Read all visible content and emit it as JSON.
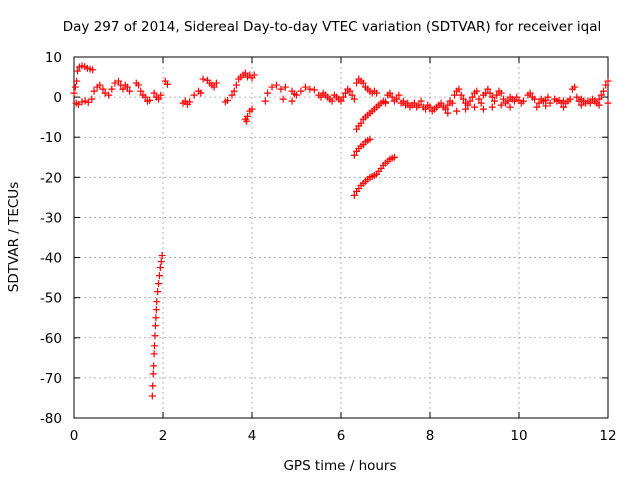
{
  "chart_data": {
    "type": "scatter",
    "title": "Day 297 of 2014, Sidereal Day-to-day VTEC variation (SDTVAR) for receiver iqal",
    "xlabel": "GPS time / hours",
    "ylabel": "SDTVAR / TECUs",
    "xlim": [
      0,
      12
    ],
    "ylim": [
      -80,
      10
    ],
    "xticks": [
      0,
      2,
      4,
      6,
      8,
      10,
      12
    ],
    "yticks": [
      -80,
      -70,
      -60,
      -50,
      -40,
      -30,
      -20,
      -10,
      0,
      10
    ],
    "grid": true,
    "marker": "+",
    "colors": {
      "series": "#ff0000",
      "grid": "#a0a0a0",
      "frame": "#000000"
    },
    "series": [
      {
        "name": "SDTVAR",
        "points": [
          [
            0.0,
            1.0
          ],
          [
            0.03,
            2.5
          ],
          [
            0.06,
            4.0
          ],
          [
            0.08,
            6.5
          ],
          [
            0.12,
            7.5
          ],
          [
            0.18,
            7.8
          ],
          [
            0.24,
            7.6
          ],
          [
            0.3,
            7.2
          ],
          [
            0.36,
            7.0
          ],
          [
            0.42,
            6.8
          ],
          [
            0.05,
            -1.5
          ],
          [
            0.1,
            -1.8
          ],
          [
            0.18,
            -1.2
          ],
          [
            0.25,
            -1.0
          ],
          [
            0.32,
            -1.3
          ],
          [
            0.4,
            -0.5
          ],
          [
            0.45,
            1.5
          ],
          [
            0.52,
            2.5
          ],
          [
            0.58,
            3.0
          ],
          [
            0.65,
            2.0
          ],
          [
            0.7,
            1.0
          ],
          [
            0.78,
            0.5
          ],
          [
            0.85,
            2.0
          ],
          [
            0.92,
            3.5
          ],
          [
            1.0,
            4.0
          ],
          [
            1.05,
            3.0
          ],
          [
            1.1,
            2.0
          ],
          [
            1.15,
            3.0
          ],
          [
            1.2,
            2.5
          ],
          [
            1.25,
            1.5
          ],
          [
            1.4,
            3.5
          ],
          [
            1.45,
            3.0
          ],
          [
            1.5,
            1.5
          ],
          [
            1.55,
            0.5
          ],
          [
            1.6,
            0.0
          ],
          [
            1.65,
            -1.0
          ],
          [
            1.7,
            -0.8
          ],
          [
            1.8,
            1.0
          ],
          [
            1.85,
            0.0
          ],
          [
            1.9,
            -0.5
          ],
          [
            1.95,
            0.5
          ],
          [
            2.05,
            4.0
          ],
          [
            2.1,
            3.2
          ],
          [
            1.76,
            -74.5
          ],
          [
            1.77,
            -72.0
          ],
          [
            1.78,
            -69.0
          ],
          [
            1.79,
            -67.0
          ],
          [
            1.8,
            -64.0
          ],
          [
            1.81,
            -62.0
          ],
          [
            1.82,
            -59.5
          ],
          [
            1.83,
            -57.0
          ],
          [
            1.84,
            -55.0
          ],
          [
            1.85,
            -53.0
          ],
          [
            1.86,
            -51.0
          ],
          [
            1.88,
            -48.5
          ],
          [
            1.9,
            -46.5
          ],
          [
            1.92,
            -44.5
          ],
          [
            1.94,
            -42.5
          ],
          [
            1.96,
            -41.0
          ],
          [
            1.98,
            -39.5
          ],
          [
            2.45,
            -1.5
          ],
          [
            2.5,
            -1.0
          ],
          [
            2.55,
            -1.8
          ],
          [
            2.6,
            -1.2
          ],
          [
            2.7,
            0.5
          ],
          [
            2.8,
            1.5
          ],
          [
            2.85,
            1.0
          ],
          [
            2.9,
            4.5
          ],
          [
            3.0,
            4.2
          ],
          [
            3.05,
            3.5
          ],
          [
            3.1,
            3.0
          ],
          [
            3.15,
            2.5
          ],
          [
            3.2,
            3.5
          ],
          [
            3.4,
            -1.2
          ],
          [
            3.45,
            -0.8
          ],
          [
            3.55,
            0.5
          ],
          [
            3.6,
            1.5
          ],
          [
            3.65,
            3.0
          ],
          [
            3.7,
            4.5
          ],
          [
            3.75,
            5.0
          ],
          [
            3.8,
            5.5
          ],
          [
            3.85,
            6.0
          ],
          [
            3.9,
            5.0
          ],
          [
            3.95,
            5.5
          ],
          [
            4.0,
            4.8
          ],
          [
            4.05,
            5.5
          ],
          [
            3.85,
            -5.5
          ],
          [
            3.88,
            -6.0
          ],
          [
            3.9,
            -4.8
          ],
          [
            3.95,
            -3.5
          ],
          [
            4.0,
            -3.0
          ],
          [
            4.3,
            -1.0
          ],
          [
            4.35,
            1.0
          ],
          [
            4.45,
            2.5
          ],
          [
            4.55,
            3.0
          ],
          [
            4.65,
            2.0
          ],
          [
            4.75,
            2.5
          ],
          [
            4.9,
            1.5
          ],
          [
            4.95,
            0.8
          ],
          [
            4.7,
            -0.5
          ],
          [
            4.9,
            -1.0
          ],
          [
            5.0,
            0.5
          ],
          [
            5.1,
            1.5
          ],
          [
            5.2,
            2.5
          ],
          [
            5.3,
            2.0
          ],
          [
            5.4,
            1.8
          ],
          [
            5.5,
            0.5
          ],
          [
            5.55,
            0.0
          ],
          [
            5.6,
            1.0
          ],
          [
            5.65,
            0.5
          ],
          [
            5.7,
            0.0
          ],
          [
            5.75,
            -0.5
          ],
          [
            5.8,
            -1.0
          ],
          [
            5.85,
            0.5
          ],
          [
            5.9,
            0.0
          ],
          [
            5.95,
            -0.5
          ],
          [
            6.0,
            -1.0
          ],
          [
            6.05,
            0.0
          ],
          [
            6.1,
            1.0
          ],
          [
            6.15,
            2.0
          ],
          [
            6.2,
            1.5
          ],
          [
            6.25,
            0.5
          ],
          [
            6.3,
            -0.5
          ],
          [
            6.35,
            3.5
          ],
          [
            6.4,
            4.5
          ],
          [
            6.45,
            4.0
          ],
          [
            6.5,
            3.5
          ],
          [
            6.55,
            2.5
          ],
          [
            6.6,
            2.0
          ],
          [
            6.65,
            1.5
          ],
          [
            6.7,
            1.0
          ],
          [
            6.75,
            1.5
          ],
          [
            6.8,
            1.0
          ],
          [
            6.35,
            -8.0
          ],
          [
            6.4,
            -7.2
          ],
          [
            6.45,
            -6.5
          ],
          [
            6.5,
            -5.5
          ],
          [
            6.55,
            -5.0
          ],
          [
            6.6,
            -4.5
          ],
          [
            6.65,
            -4.0
          ],
          [
            6.7,
            -3.5
          ],
          [
            6.75,
            -3.0
          ],
          [
            6.8,
            -2.5
          ],
          [
            6.85,
            -2.0
          ],
          [
            6.9,
            -1.5
          ],
          [
            6.95,
            -1.0
          ],
          [
            7.0,
            -1.2
          ],
          [
            6.3,
            -14.5
          ],
          [
            6.35,
            -13.5
          ],
          [
            6.4,
            -12.8
          ],
          [
            6.45,
            -12.2
          ],
          [
            6.5,
            -11.8
          ],
          [
            6.55,
            -11.2
          ],
          [
            6.6,
            -10.8
          ],
          [
            6.65,
            -10.5
          ],
          [
            6.3,
            -24.5
          ],
          [
            6.35,
            -23.5
          ],
          [
            6.4,
            -22.8
          ],
          [
            6.45,
            -22.0
          ],
          [
            6.5,
            -21.5
          ],
          [
            6.55,
            -21.0
          ],
          [
            6.6,
            -20.5
          ],
          [
            6.65,
            -20.0
          ],
          [
            6.7,
            -19.8
          ],
          [
            6.75,
            -19.5
          ],
          [
            6.8,
            -19.2
          ],
          [
            6.85,
            -18.5
          ],
          [
            6.9,
            -17.8
          ],
          [
            6.95,
            -17.0
          ],
          [
            7.0,
            -16.5
          ],
          [
            7.05,
            -16.0
          ],
          [
            7.1,
            -15.5
          ],
          [
            7.15,
            -15.2
          ],
          [
            7.2,
            -15.0
          ],
          [
            7.0,
            -1.5
          ],
          [
            7.05,
            0.5
          ],
          [
            7.1,
            1.0
          ],
          [
            7.15,
            0.0
          ],
          [
            7.2,
            -1.0
          ],
          [
            7.25,
            -0.5
          ],
          [
            7.3,
            0.5
          ],
          [
            7.35,
            -1.5
          ],
          [
            7.4,
            -1.0
          ],
          [
            7.45,
            -2.0
          ],
          [
            7.5,
            -1.5
          ],
          [
            7.55,
            -2.5
          ],
          [
            7.6,
            -2.0
          ],
          [
            7.65,
            -1.5
          ],
          [
            7.7,
            -2.5
          ],
          [
            7.75,
            -2.0
          ],
          [
            7.8,
            -1.0
          ],
          [
            7.85,
            -2.5
          ],
          [
            7.9,
            -3.0
          ],
          [
            7.95,
            -2.0
          ],
          [
            8.0,
            -2.5
          ],
          [
            8.05,
            -3.5
          ],
          [
            8.1,
            -3.0
          ],
          [
            8.15,
            -2.5
          ],
          [
            8.2,
            -2.0
          ],
          [
            8.25,
            -1.5
          ],
          [
            8.3,
            -2.5
          ],
          [
            8.35,
            -3.0
          ],
          [
            8.4,
            -2.0
          ],
          [
            8.45,
            -1.0
          ],
          [
            8.5,
            -1.5
          ],
          [
            8.55,
            0.5
          ],
          [
            8.6,
            1.5
          ],
          [
            8.65,
            2.0
          ],
          [
            8.7,
            0.5
          ],
          [
            8.75,
            -0.5
          ],
          [
            8.8,
            -1.5
          ],
          [
            8.85,
            -2.0
          ],
          [
            8.9,
            -1.0
          ],
          [
            8.95,
            0.0
          ],
          [
            9.0,
            1.0
          ],
          [
            9.05,
            1.5
          ],
          [
            9.1,
            -0.5
          ],
          [
            9.15,
            -1.5
          ],
          [
            9.2,
            0.5
          ],
          [
            9.25,
            1.0
          ],
          [
            9.3,
            2.0
          ],
          [
            9.35,
            1.0
          ],
          [
            9.4,
            0.0
          ],
          [
            9.45,
            -1.0
          ],
          [
            9.5,
            0.5
          ],
          [
            9.55,
            1.5
          ],
          [
            9.6,
            1.0
          ],
          [
            9.65,
            -0.5
          ],
          [
            9.7,
            -1.5
          ],
          [
            9.75,
            -1.0
          ],
          [
            9.8,
            0.0
          ],
          [
            9.85,
            -0.5
          ],
          [
            9.9,
            -1.0
          ],
          [
            9.95,
            0.0
          ],
          [
            10.0,
            -0.8
          ],
          [
            10.05,
            -1.5
          ],
          [
            10.1,
            -1.0
          ],
          [
            8.4,
            -4.0
          ],
          [
            8.6,
            -3.5
          ],
          [
            8.8,
            -3.0
          ],
          [
            9.0,
            -2.5
          ],
          [
            9.2,
            -3.0
          ],
          [
            9.4,
            -2.5
          ],
          [
            9.6,
            -2.0
          ],
          [
            9.8,
            -2.5
          ],
          [
            10.2,
            0.5
          ],
          [
            10.25,
            1.0
          ],
          [
            10.3,
            0.0
          ],
          [
            10.35,
            -0.5
          ],
          [
            10.45,
            -1.5
          ],
          [
            10.5,
            -0.5
          ],
          [
            10.55,
            -1.0
          ],
          [
            10.6,
            -0.8
          ],
          [
            10.65,
            0.0
          ],
          [
            10.7,
            -1.5
          ],
          [
            10.8,
            -0.5
          ],
          [
            10.85,
            -1.0
          ],
          [
            10.9,
            -0.8
          ],
          [
            10.95,
            -1.5
          ],
          [
            11.0,
            -1.0
          ],
          [
            11.05,
            -1.5
          ],
          [
            11.1,
            -1.0
          ],
          [
            11.15,
            -0.5
          ],
          [
            11.2,
            2.0
          ],
          [
            11.25,
            2.5
          ],
          [
            11.3,
            0.0
          ],
          [
            11.35,
            -1.0
          ],
          [
            11.4,
            -0.5
          ],
          [
            11.45,
            -1.0
          ],
          [
            11.5,
            -1.5
          ],
          [
            11.55,
            -1.0
          ],
          [
            11.6,
            -1.5
          ],
          [
            11.65,
            -0.5
          ],
          [
            11.7,
            -1.0
          ],
          [
            11.75,
            -1.5
          ],
          [
            11.8,
            -0.5
          ],
          [
            11.85,
            0.5
          ],
          [
            11.9,
            1.5
          ],
          [
            11.95,
            3.0
          ],
          [
            12.0,
            4.0
          ],
          [
            12.0,
            -1.5
          ],
          [
            10.4,
            -2.5
          ],
          [
            10.6,
            -2.2
          ],
          [
            11.0,
            -2.5
          ],
          [
            11.4,
            -2.0
          ],
          [
            11.8,
            -2.0
          ]
        ]
      }
    ]
  }
}
